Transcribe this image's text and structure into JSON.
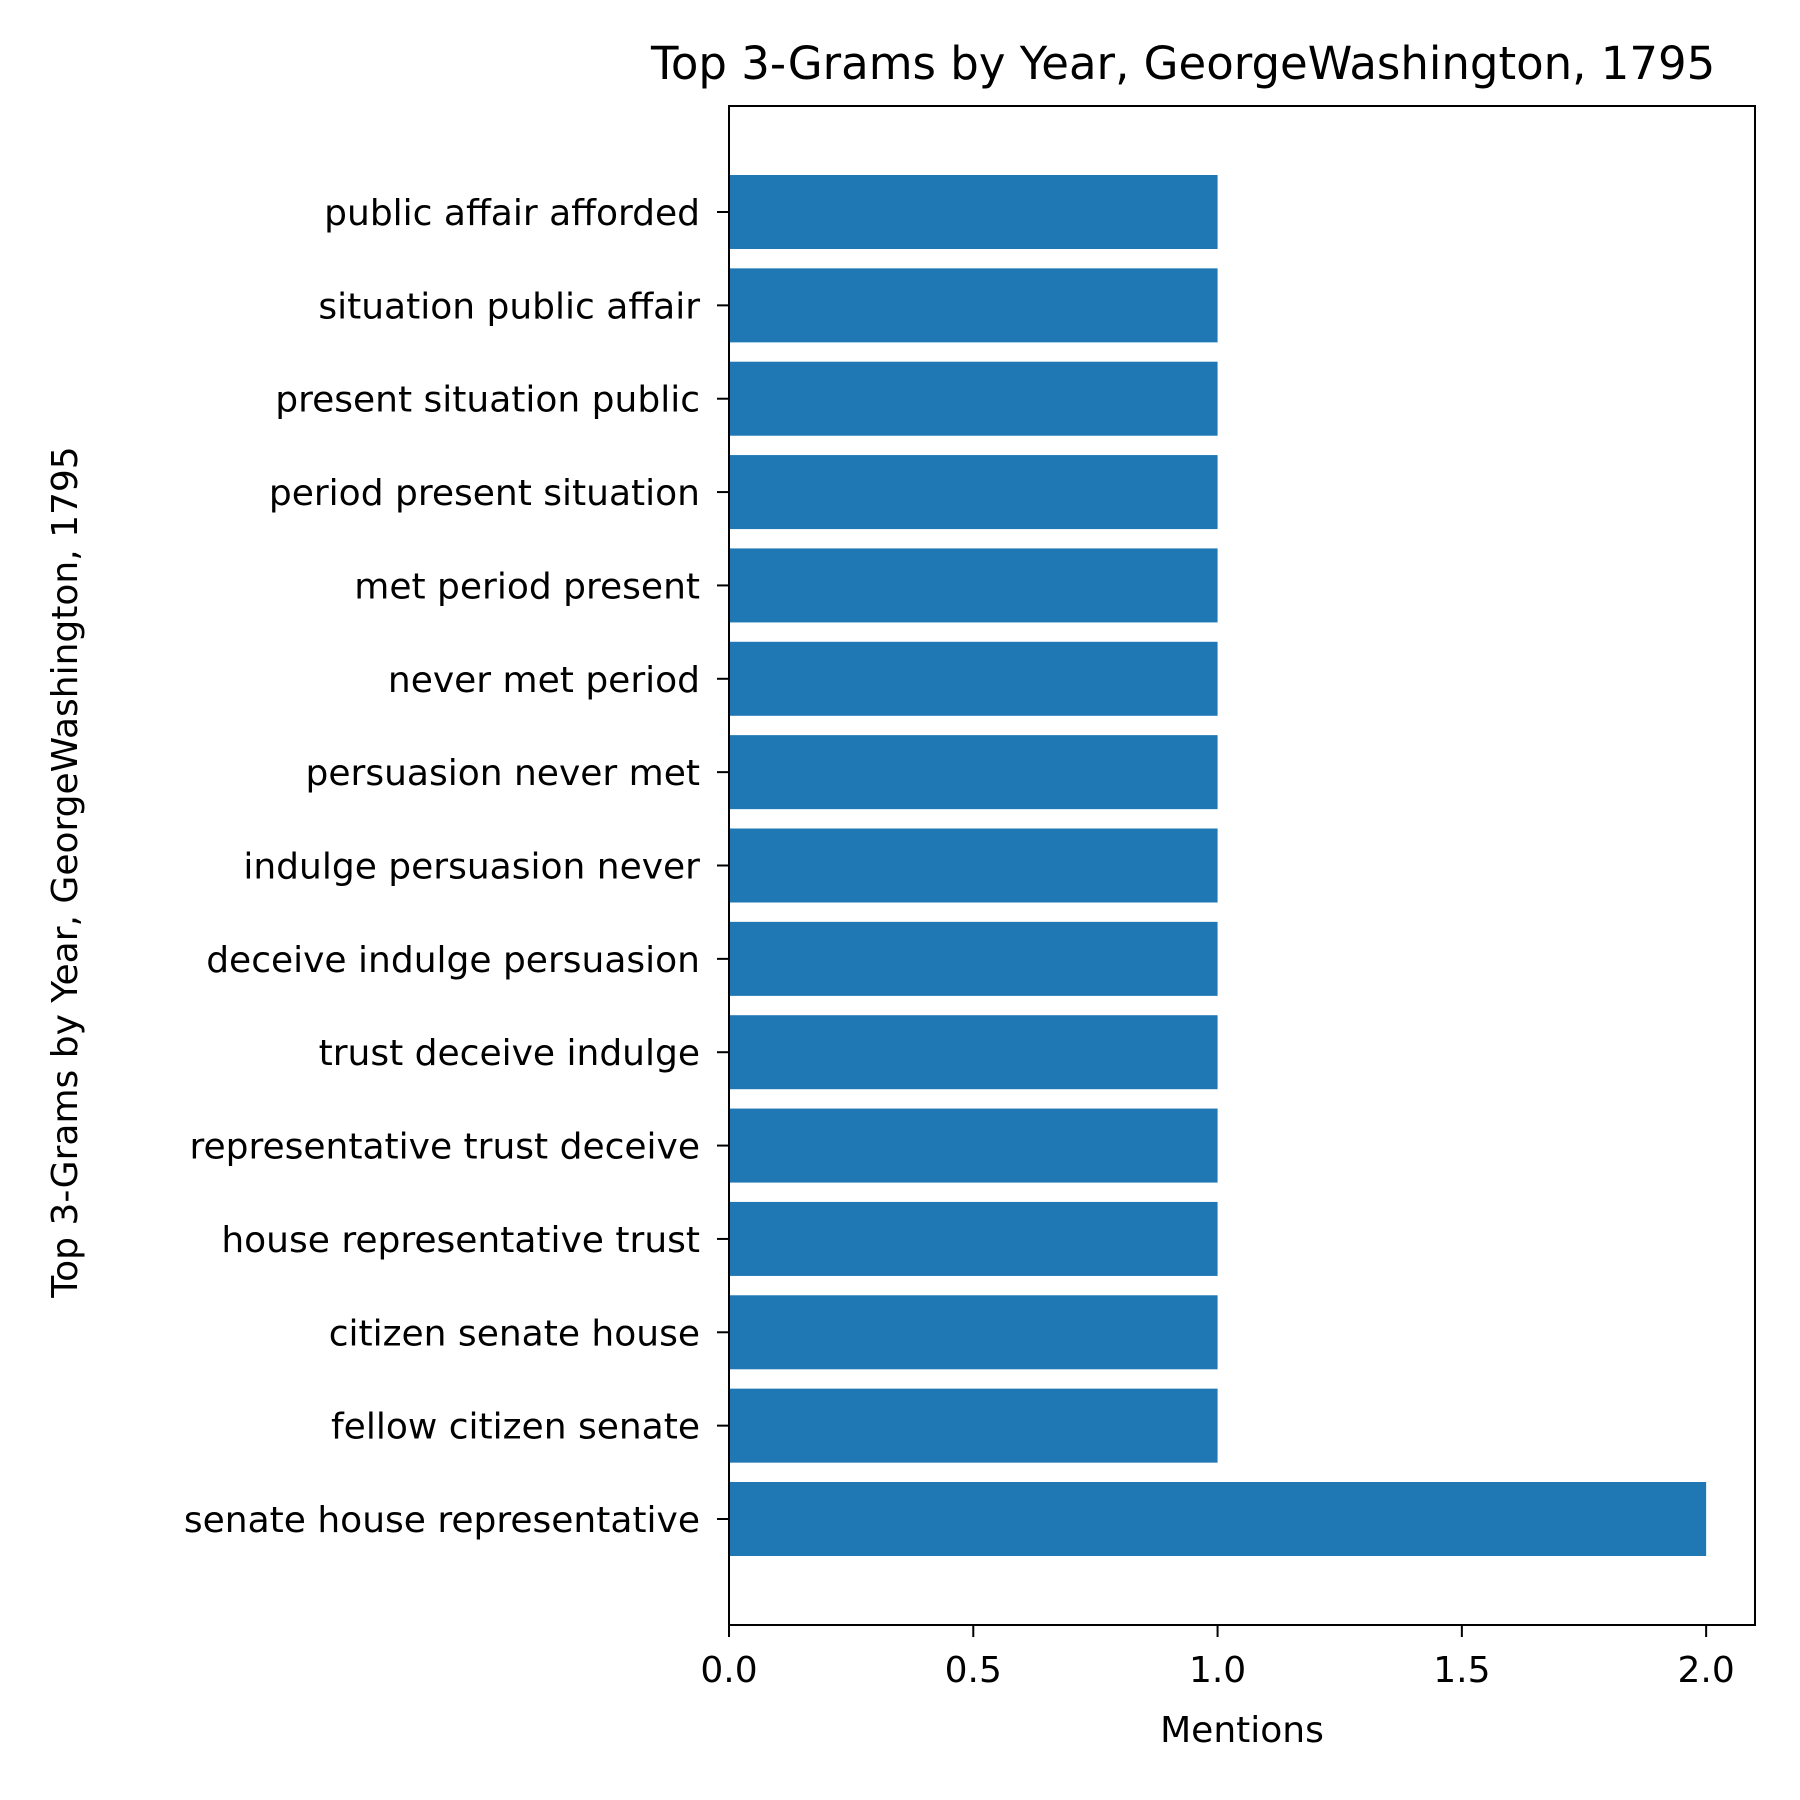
{
  "chart_data": {
    "type": "bar",
    "orientation": "horizontal",
    "title": "Top 3-Grams by Year, GeorgeWashington, 1795",
    "xlabel": "Mentions",
    "ylabel": "Top 3-Grams by Year, GeorgeWashington, 1795",
    "xlim": [
      0,
      2.1
    ],
    "xticks": [
      "0.0",
      "0.5",
      "1.0",
      "1.5",
      "2.0"
    ],
    "grid": false,
    "legend": "none",
    "bar_color": "#1f77b4",
    "categories": [
      "senate house representative",
      "fellow citizen senate",
      "citizen senate house",
      "house representative trust",
      "representative trust deceive",
      "trust deceive indulge",
      "deceive indulge persuasion",
      "indulge persuasion never",
      "persuasion never met",
      "never met period",
      "met period present",
      "period present situation",
      "present situation public",
      "situation public affair",
      "public affair afforded"
    ],
    "values": [
      2,
      1,
      1,
      1,
      1,
      1,
      1,
      1,
      1,
      1,
      1,
      1,
      1,
      1,
      1
    ]
  }
}
